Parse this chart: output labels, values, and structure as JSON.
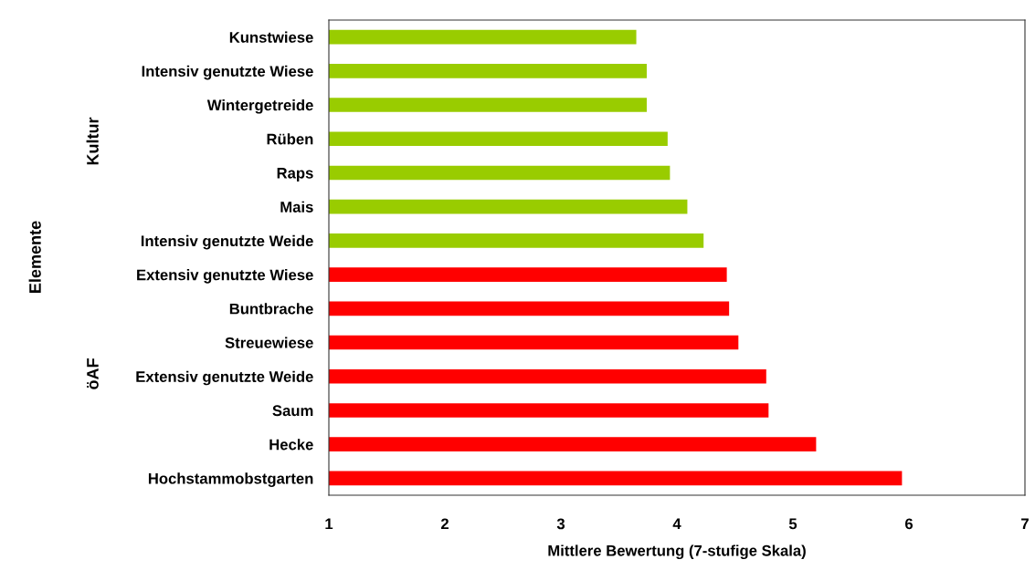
{
  "chart_data": {
    "type": "bar",
    "orientation": "horizontal",
    "xlabel": "Mittlere Bewertung (7-stufige Skala)",
    "categories": [
      "Kunstwiese",
      "Intensiv genutzte Wiese",
      "Wintergetreide",
      "Rüben",
      "Raps",
      "Mais",
      "Intensiv genutzte Weide",
      "Extensiv genutzte Wiese",
      "Buntbrache",
      "Streuewiese",
      "Extensiv genutzte Weide",
      "Saum",
      "Hecke",
      "Hochstammobstgarten"
    ],
    "values": [
      3.65,
      3.74,
      3.74,
      3.92,
      3.94,
      4.09,
      4.23,
      4.43,
      4.45,
      4.53,
      4.77,
      4.79,
      5.2,
      5.94
    ],
    "colors": [
      "#99cc00",
      "#99cc00",
      "#99cc00",
      "#99cc00",
      "#99cc00",
      "#99cc00",
      "#99cc00",
      "#ff0000",
      "#ff0000",
      "#ff0000",
      "#ff0000",
      "#ff0000",
      "#ff0000",
      "#ff0000"
    ],
    "xlim": [
      1,
      7
    ],
    "xticks": [
      1,
      2,
      3,
      4,
      5,
      6,
      7
    ],
    "grid": false,
    "annotations": [
      "Elemente",
      "Kultur",
      "öAF"
    ]
  }
}
